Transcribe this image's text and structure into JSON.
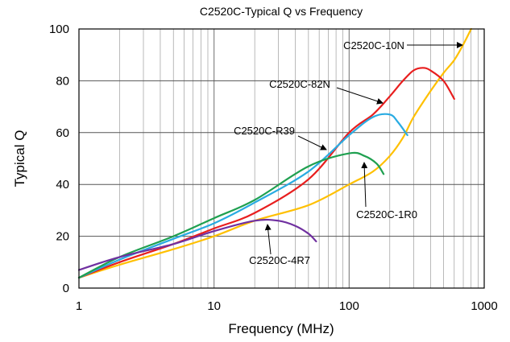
{
  "chart_data": {
    "type": "line",
    "title": "C2520C-Typical Q vs Frequency",
    "xlabel": "Frequency (MHz)",
    "ylabel": "Typical Q",
    "x_scale": "log",
    "xlim": [
      1,
      1000
    ],
    "ylim": [
      0,
      100
    ],
    "x_ticks": [
      "1",
      "10",
      "100",
      "1000"
    ],
    "y_ticks": [
      "0",
      "20",
      "40",
      "60",
      "80",
      "100"
    ],
    "grid": true,
    "series": [
      {
        "name": "C2520C-10N",
        "color": "#FFC000",
        "x": [
          1,
          2,
          5,
          10,
          20,
          50,
          100,
          150,
          200,
          250,
          300,
          400,
          500,
          600,
          700,
          800
        ],
        "y": [
          4,
          9,
          15,
          20,
          26,
          32,
          40,
          45,
          51,
          58,
          66,
          76,
          83,
          88,
          94,
          100
        ]
      },
      {
        "name": "C2520C-82N",
        "color": "#E81E1E",
        "x": [
          1,
          2,
          5,
          10,
          20,
          50,
          100,
          150,
          200,
          250,
          300,
          350,
          400,
          500,
          600
        ],
        "y": [
          4,
          10,
          17,
          23,
          29,
          42,
          60,
          67,
          74,
          80,
          84,
          85,
          84,
          80,
          73
        ]
      },
      {
        "name": "C2520C-R39",
        "color": "#29ABE2",
        "x": [
          1,
          2,
          5,
          10,
          20,
          50,
          100,
          150,
          200,
          230,
          270
        ],
        "y": [
          4,
          11,
          19,
          25,
          33,
          45,
          59,
          66,
          67,
          64,
          59
        ]
      },
      {
        "name": "C2520C-1R0",
        "color": "#1FA050",
        "x": [
          1,
          2,
          5,
          10,
          20,
          50,
          100,
          130,
          160,
          180
        ],
        "y": [
          4,
          12,
          20,
          27,
          34,
          47,
          52,
          51,
          48,
          44
        ]
      },
      {
        "name": "C2520C-4R7",
        "color": "#7030A0",
        "x": [
          1,
          2,
          5,
          10,
          20,
          30,
          40,
          50,
          57
        ],
        "y": [
          7,
          12,
          17,
          22,
          26,
          26,
          24,
          21,
          18
        ]
      }
    ],
    "annotations": [
      "C2520C-10N",
      "C2520C-82N",
      "C2520C-R39",
      "C2520C-1R0",
      "C2520C-4R7"
    ]
  }
}
